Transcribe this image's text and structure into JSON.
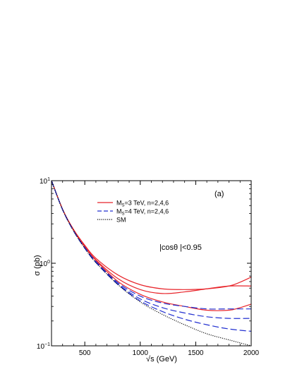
{
  "chart_data": {
    "type": "line",
    "title": "",
    "xlabel": "√s   (GeV)",
    "ylabel": "σ  (pb)",
    "xlim": [
      200,
      2000
    ],
    "ylim": [
      0.1,
      10
    ],
    "yscale": "log",
    "grid": false,
    "legend_placement": "top-center",
    "panel_label": "(a)",
    "annotation": "|cosθ |<0.95",
    "x_ticks": [
      {
        "value": 500,
        "label": "500"
      },
      {
        "value": 1000,
        "label": "1000"
      },
      {
        "value": 1500,
        "label": "1500"
      },
      {
        "value": 2000,
        "label": "2000"
      }
    ],
    "y_ticks": [
      {
        "value": 0.1,
        "base": "10",
        "exp": "−1"
      },
      {
        "value": 1,
        "base": "10",
        "exp": "0"
      },
      {
        "value": 10,
        "base": "10",
        "exp": "1"
      }
    ],
    "legend": [
      {
        "label_main": "M",
        "label_sub": "S",
        "label_rest": "=3 TeV, n=2,4,6",
        "color": "#e8252b",
        "dash": "solid"
      },
      {
        "label_main": "M",
        "label_sub": "S",
        "label_rest": "=4 TeV, n=2,4,6",
        "color": "#2230d0",
        "dash": "dashed"
      },
      {
        "label_main": "SM",
        "label_sub": "",
        "label_rest": "",
        "color": "#000000",
        "dash": "dotted"
      }
    ],
    "series": [
      {
        "group": "MS=3 TeV",
        "n": 2,
        "color": "#e8252b",
        "dash": "solid",
        "x": [
          200,
          300,
          400,
          500,
          600,
          800,
          1000,
          1200,
          1400,
          1600,
          1800,
          1900,
          2000
        ],
        "y": [
          10,
          4.5,
          2.55,
          1.65,
          1.15,
          0.72,
          0.55,
          0.49,
          0.48,
          0.49,
          0.53,
          0.59,
          0.68
        ]
      },
      {
        "group": "MS=3 TeV",
        "n": 4,
        "color": "#e8252b",
        "dash": "solid",
        "x": [
          200,
          300,
          400,
          500,
          600,
          800,
          1000,
          1200,
          1400,
          1600,
          1800,
          2000
        ],
        "y": [
          10,
          4.5,
          2.5,
          1.6,
          1.1,
          0.65,
          0.48,
          0.43,
          0.45,
          0.49,
          0.53,
          0.53
        ]
      },
      {
        "group": "MS=3 TeV",
        "n": 6,
        "color": "#e8252b",
        "dash": "solid",
        "x": [
          200,
          300,
          400,
          500,
          600,
          800,
          1000,
          1200,
          1400,
          1600,
          1800,
          1900,
          2000
        ],
        "y": [
          10,
          4.5,
          2.5,
          1.58,
          1.08,
          0.6,
          0.42,
          0.34,
          0.3,
          0.27,
          0.27,
          0.29,
          0.32
        ]
      },
      {
        "group": "MS=4 TeV",
        "n": 2,
        "color": "#2230d0",
        "dash": "dashed",
        "x": [
          200,
          300,
          400,
          500,
          600,
          800,
          1000,
          1200,
          1400,
          1600,
          1800,
          2000
        ],
        "y": [
          10,
          4.45,
          2.45,
          1.55,
          1.05,
          0.58,
          0.4,
          0.33,
          0.3,
          0.28,
          0.28,
          0.28
        ]
      },
      {
        "group": "MS=4 TeV",
        "n": 4,
        "color": "#2230d0",
        "dash": "dashed",
        "x": [
          200,
          300,
          400,
          500,
          600,
          800,
          1000,
          1200,
          1400,
          1600,
          1800,
          2000
        ],
        "y": [
          10,
          4.45,
          2.45,
          1.53,
          1.03,
          0.56,
          0.37,
          0.29,
          0.25,
          0.225,
          0.215,
          0.215
        ]
      },
      {
        "group": "MS=4 TeV",
        "n": 6,
        "color": "#2230d0",
        "dash": "dashed",
        "x": [
          200,
          300,
          400,
          500,
          600,
          800,
          1000,
          1200,
          1400,
          1600,
          1800,
          2000
        ],
        "y": [
          10,
          4.45,
          2.45,
          1.52,
          1.02,
          0.55,
          0.35,
          0.26,
          0.21,
          0.18,
          0.16,
          0.15
        ]
      },
      {
        "group": "SM",
        "n": null,
        "color": "#000000",
        "dash": "dotted",
        "x": [
          200,
          300,
          400,
          500,
          600,
          800,
          1000,
          1200,
          1400,
          1600,
          1800,
          2000
        ],
        "y": [
          10,
          4.45,
          2.45,
          1.52,
          1.02,
          0.55,
          0.34,
          0.24,
          0.18,
          0.14,
          0.118,
          0.1
        ]
      }
    ]
  }
}
